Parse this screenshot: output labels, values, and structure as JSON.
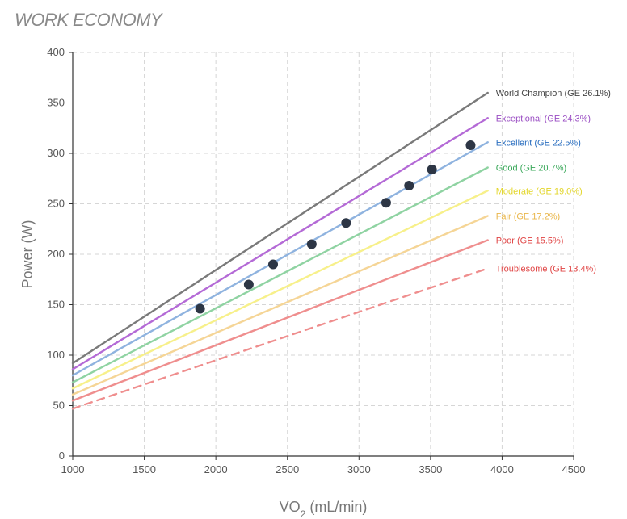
{
  "title": "WORK ECONOMY",
  "chart_data": {
    "type": "line",
    "title": "WORK ECONOMY",
    "xlabel": "VO2 (mL/min)",
    "ylabel": "Power (W)",
    "xlim": [
      1000,
      4500
    ],
    "ylim": [
      0,
      400
    ],
    "x_ticks": [
      1000,
      1500,
      2000,
      2500,
      3000,
      3500,
      4000,
      4500
    ],
    "y_ticks": [
      0,
      50,
      100,
      150,
      200,
      250,
      300,
      350,
      400
    ],
    "grid": true,
    "series": [
      {
        "name": "World Champion (GE 26.1%)",
        "x": [
          1000,
          3900
        ],
        "y": [
          92,
          360
        ],
        "color": "#7a7a7a",
        "dashed": false
      },
      {
        "name": "Exceptional (GE 24.3%)",
        "x": [
          1000,
          3900
        ],
        "y": [
          86,
          335
        ],
        "color": "#b46ad6",
        "dashed": false
      },
      {
        "name": "Excellent (GE 22.5%)",
        "x": [
          1000,
          3900
        ],
        "y": [
          80,
          311
        ],
        "color": "#8fb3df",
        "dashed": false
      },
      {
        "name": "Good (GE 20.7%)",
        "x": [
          1000,
          3900
        ],
        "y": [
          73,
          286
        ],
        "color": "#8fd3a2",
        "dashed": false
      },
      {
        "name": "Moderate (GE 19.0%)",
        "x": [
          1000,
          3900
        ],
        "y": [
          67,
          263
        ],
        "color": "#f7f08a",
        "dashed": false
      },
      {
        "name": "Fair (GE 17.2%)",
        "x": [
          1000,
          3900
        ],
        "y": [
          61,
          238
        ],
        "color": "#f5d596",
        "dashed": false
      },
      {
        "name": "Poor (GE 15.5%)",
        "x": [
          1000,
          3900
        ],
        "y": [
          55,
          214
        ],
        "color": "#ef8e8e",
        "dashed": false
      },
      {
        "name": "Troublesome (GE 13.4%)",
        "x": [
          1000,
          3900
        ],
        "y": [
          47,
          186
        ],
        "color": "#ef8e8e",
        "dashed": true
      }
    ],
    "label_colors": [
      "#444444",
      "#9b4fc4",
      "#2b6fc0",
      "#3aa85a",
      "#e3d62a",
      "#e9b64a",
      "#e04545",
      "#e04545"
    ],
    "points": [
      {
        "x": 1890,
        "y": 146
      },
      {
        "x": 2230,
        "y": 170
      },
      {
        "x": 2400,
        "y": 190
      },
      {
        "x": 2670,
        "y": 210
      },
      {
        "x": 2910,
        "y": 231
      },
      {
        "x": 3190,
        "y": 251
      },
      {
        "x": 3350,
        "y": 268
      },
      {
        "x": 3510,
        "y": 284
      },
      {
        "x": 3780,
        "y": 308
      }
    ],
    "point_color": "#2d3645"
  }
}
